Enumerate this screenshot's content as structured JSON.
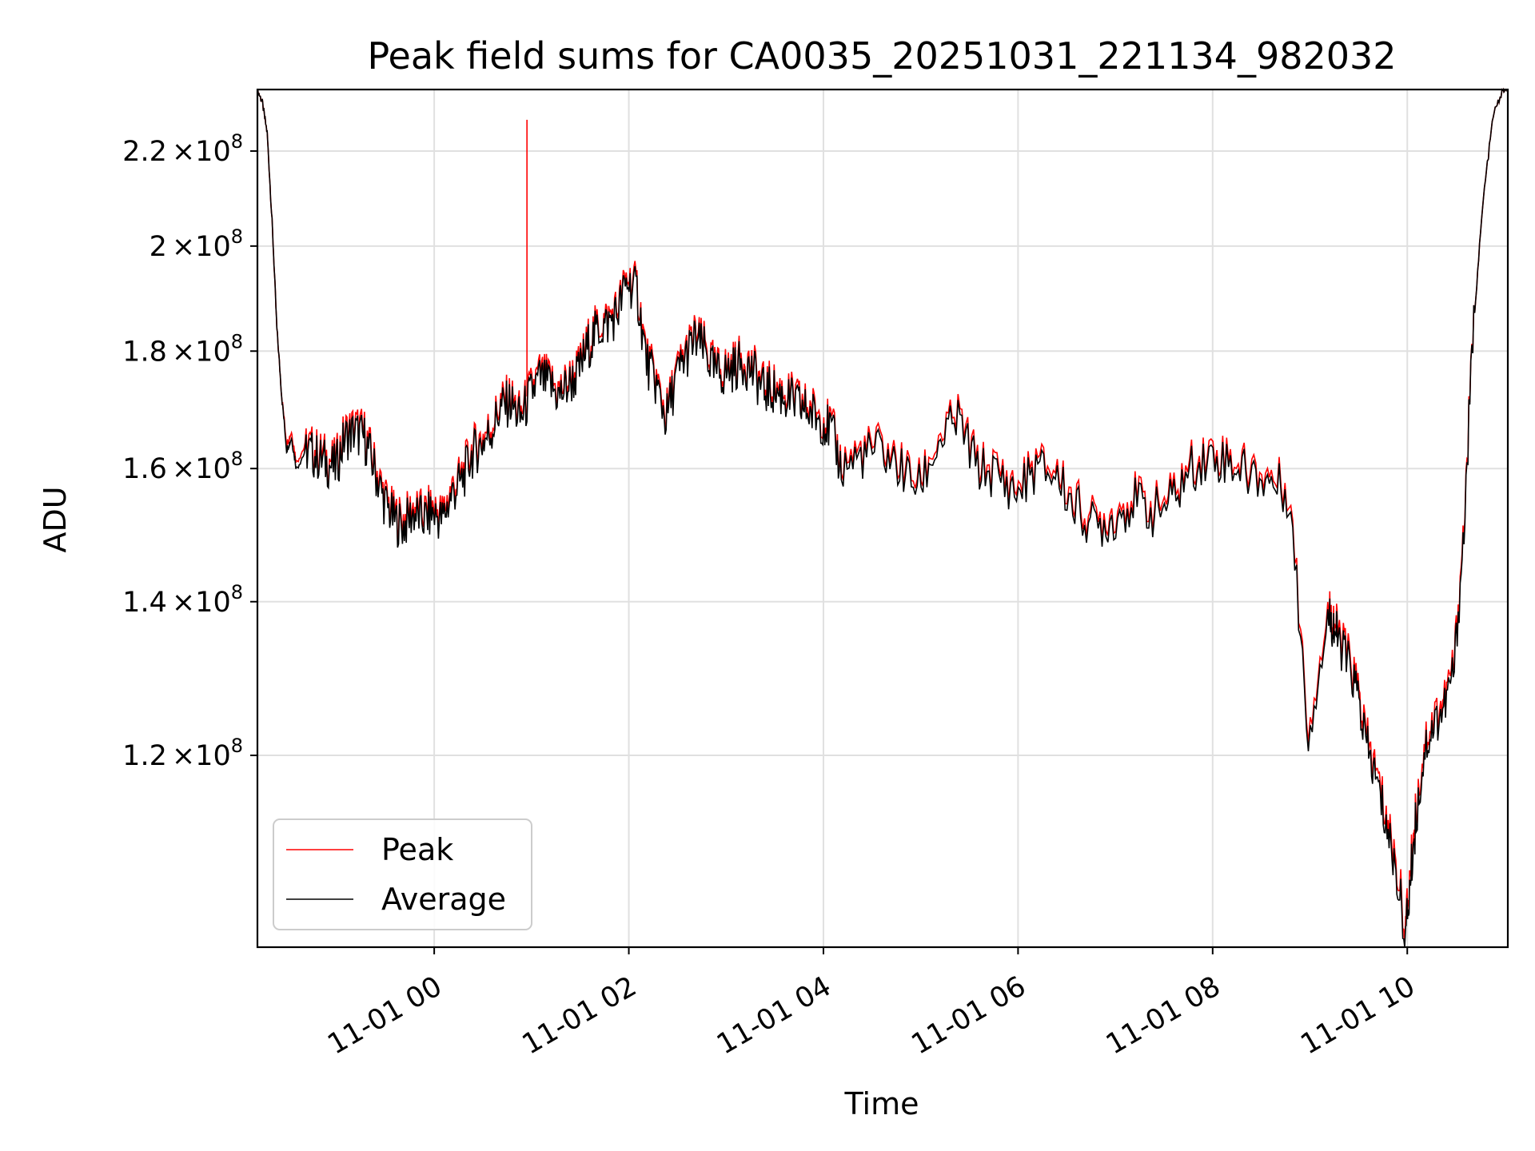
{
  "chart_data": {
    "type": "line",
    "title": "Peak field sums for CA0035_20251031_221134_982032",
    "xlabel": "Time",
    "ylabel": "ADU",
    "x_unit": "hours since 2025-10-31 22:11",
    "xlim": [
      0,
      12.85
    ],
    "ylim": [
      99000000,
      234000000
    ],
    "y_scale": "log",
    "grid": true,
    "legend_position": "lower-left",
    "colors": {
      "Peak": "#ff0000",
      "Average": "#000000",
      "grid": "#e0e0e0",
      "axes": "#000000"
    },
    "x_ticks": [
      {
        "value": 1.8167,
        "label": "11-01 00"
      },
      {
        "value": 3.8167,
        "label": "11-01 02"
      },
      {
        "value": 5.8167,
        "label": "11-01 04"
      },
      {
        "value": 7.8167,
        "label": "11-01 06"
      },
      {
        "value": 9.8167,
        "label": "11-01 08"
      },
      {
        "value": 11.8167,
        "label": "11-01 10"
      }
    ],
    "y_ticks": [
      {
        "value": 120000000,
        "mantissa": "1.2",
        "exp": "8"
      },
      {
        "value": 140000000,
        "mantissa": "1.4",
        "exp": "8"
      },
      {
        "value": 160000000,
        "mantissa": "1.6",
        "exp": "8"
      },
      {
        "value": 180000000,
        "mantissa": "1.8",
        "exp": "8"
      },
      {
        "value": 200000000,
        "mantissa": "2",
        "exp": "8"
      },
      {
        "value": 220000000,
        "mantissa": "2.2",
        "exp": "8"
      }
    ],
    "times_bsl": "×10",
    "x": [
      0,
      0.05,
      0.1,
      0.15,
      0.2,
      0.25,
      0.3,
      0.35,
      0.4,
      0.5,
      0.6,
      0.7,
      0.8,
      0.9,
      1.0,
      1.1,
      1.2,
      1.3,
      1.4,
      1.5,
      1.6,
      1.7,
      1.8,
      1.9,
      2.0,
      2.1,
      2.2,
      2.3,
      2.4,
      2.5,
      2.6,
      2.7,
      2.8,
      2.9,
      3.0,
      3.1,
      3.2,
      3.3,
      3.4,
      3.5,
      3.6,
      3.7,
      3.8,
      3.9,
      4.0,
      4.1,
      4.2,
      4.3,
      4.4,
      4.5,
      4.6,
      4.7,
      4.8,
      4.9,
      5.0,
      5.1,
      5.2,
      5.3,
      5.4,
      5.5,
      5.6,
      5.7,
      5.8,
      5.9,
      6.0,
      6.2,
      6.4,
      6.6,
      6.8,
      7.0,
      7.2,
      7.4,
      7.6,
      7.8,
      8.0,
      8.2,
      8.4,
      8.6,
      8.8,
      9.0,
      9.2,
      9.4,
      9.6,
      9.8,
      10.0,
      10.2,
      10.4,
      10.6,
      10.8,
      11.0,
      11.05,
      11.1,
      11.2,
      11.3,
      11.4,
      11.5,
      11.6,
      11.7,
      11.8,
      11.85,
      11.9,
      12.0,
      12.1,
      12.2,
      12.3,
      12.4,
      12.5,
      12.6,
      12.7,
      12.8,
      12.85
    ],
    "series": [
      {
        "name": "Average",
        "values": [
          234,
          231,
          224,
          205,
          184,
          172,
          163,
          165,
          160,
          163,
          162,
          161,
          160,
          165,
          166,
          165,
          160,
          155,
          152,
          151,
          153,
          152,
          153,
          152,
          156,
          158,
          162,
          164,
          166,
          170,
          171,
          168,
          172,
          175,
          174,
          172,
          174,
          176,
          181,
          184,
          185,
          187,
          193,
          191,
          178,
          174,
          168,
          175,
          179,
          182,
          180,
          176,
          176,
          177,
          178,
          176,
          173,
          173,
          172,
          171,
          170,
          169,
          168,
          166,
          160,
          162,
          163,
          160,
          157,
          164,
          168,
          160,
          159,
          156,
          160,
          159,
          154,
          151,
          152,
          155,
          153,
          155,
          160,
          162,
          161,
          159,
          158,
          156,
          122,
          138,
          137,
          135,
          132,
          128,
          121,
          117,
          112,
          107,
          100,
          106,
          112,
          121,
          124,
          126,
          131,
          150,
          185,
          210,
          228,
          234,
          234
        ]
      },
      {
        "name": "Peak",
        "values": [
          234,
          231,
          224,
          205,
          184,
          172,
          164,
          166,
          161,
          164,
          163,
          162,
          161,
          166,
          167,
          166,
          161,
          156,
          153,
          152,
          154,
          153,
          154,
          153,
          157,
          159,
          163,
          165,
          167,
          171,
          172,
          169,
          173,
          176,
          175,
          173,
          175,
          177,
          182,
          185,
          186,
          188,
          194,
          192,
          179,
          175,
          169,
          176,
          180,
          183,
          181,
          177,
          177,
          178,
          179,
          177,
          174,
          174,
          173,
          172,
          171,
          170,
          169,
          167,
          161,
          163,
          164,
          161,
          158,
          165,
          169,
          161,
          160,
          157,
          161,
          160,
          155,
          152,
          153,
          156,
          154,
          156,
          161,
          163,
          162,
          160,
          159,
          157,
          123,
          139,
          138,
          136,
          133,
          129,
          122,
          118,
          113,
          108,
          101,
          107,
          113,
          122,
          125,
          127,
          132,
          151,
          185,
          210,
          228,
          234,
          234
        ]
      }
    ],
    "value_scale": 1000000,
    "peak_spike": {
      "x": 2.77,
      "value": 227000000
    },
    "legend": [
      "Peak",
      "Average"
    ]
  }
}
